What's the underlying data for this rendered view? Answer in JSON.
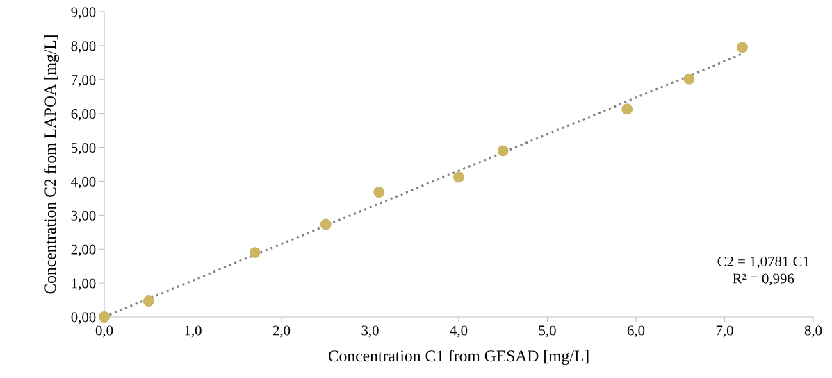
{
  "chart_data": {
    "type": "scatter",
    "xlabel": "Concentration C1 from GESAD [mg/L]",
    "ylabel": "Concentration C2 from LAPOA [mg/L]",
    "series": [
      {
        "type": "scatter",
        "color": "#ccb662",
        "marker": "circle",
        "x": [
          0,
          0.5,
          1.7,
          2.5,
          3.1,
          4.0,
          4.5,
          5.9,
          6.6,
          7.2
        ],
        "values": [
          0,
          0.47,
          1.9,
          2.73,
          3.68,
          4.12,
          4.9,
          6.13,
          7.02,
          7.95
        ]
      },
      {
        "type": "line",
        "color": "#808080",
        "line_style": "dotted",
        "marker": "none",
        "x": [
          0,
          7.2
        ],
        "values": [
          0,
          7.76
        ]
      }
    ],
    "xlim": [
      0,
      8
    ],
    "ylim": [
      0,
      9
    ],
    "xticks": [
      {
        "value": 0,
        "label": "0,0"
      },
      {
        "value": 1,
        "label": "1,0"
      },
      {
        "value": 2,
        "label": "2,0"
      },
      {
        "value": 3,
        "label": "3,0"
      },
      {
        "value": 4,
        "label": "4,0"
      },
      {
        "value": 5,
        "label": "5,0"
      },
      {
        "value": 6,
        "label": "6,0"
      },
      {
        "value": 7,
        "label": "7,0"
      },
      {
        "value": 8,
        "label": "8,0"
      }
    ],
    "yticks": [
      {
        "value": 0,
        "label": "0,00"
      },
      {
        "value": 1,
        "label": "1,00"
      },
      {
        "value": 2,
        "label": "2,00"
      },
      {
        "value": 3,
        "label": "3,00"
      },
      {
        "value": 4,
        "label": "4,00"
      },
      {
        "value": 5,
        "label": "5,00"
      },
      {
        "value": 6,
        "label": "6,00"
      },
      {
        "value": 7,
        "label": "7,00"
      },
      {
        "value": 8,
        "label": "8,00"
      },
      {
        "value": 9,
        "label": "9,00"
      }
    ],
    "annotations": [
      "C2 = 1,0781 C1\nR² = 0,996"
    ],
    "grid": false,
    "legend": false
  }
}
